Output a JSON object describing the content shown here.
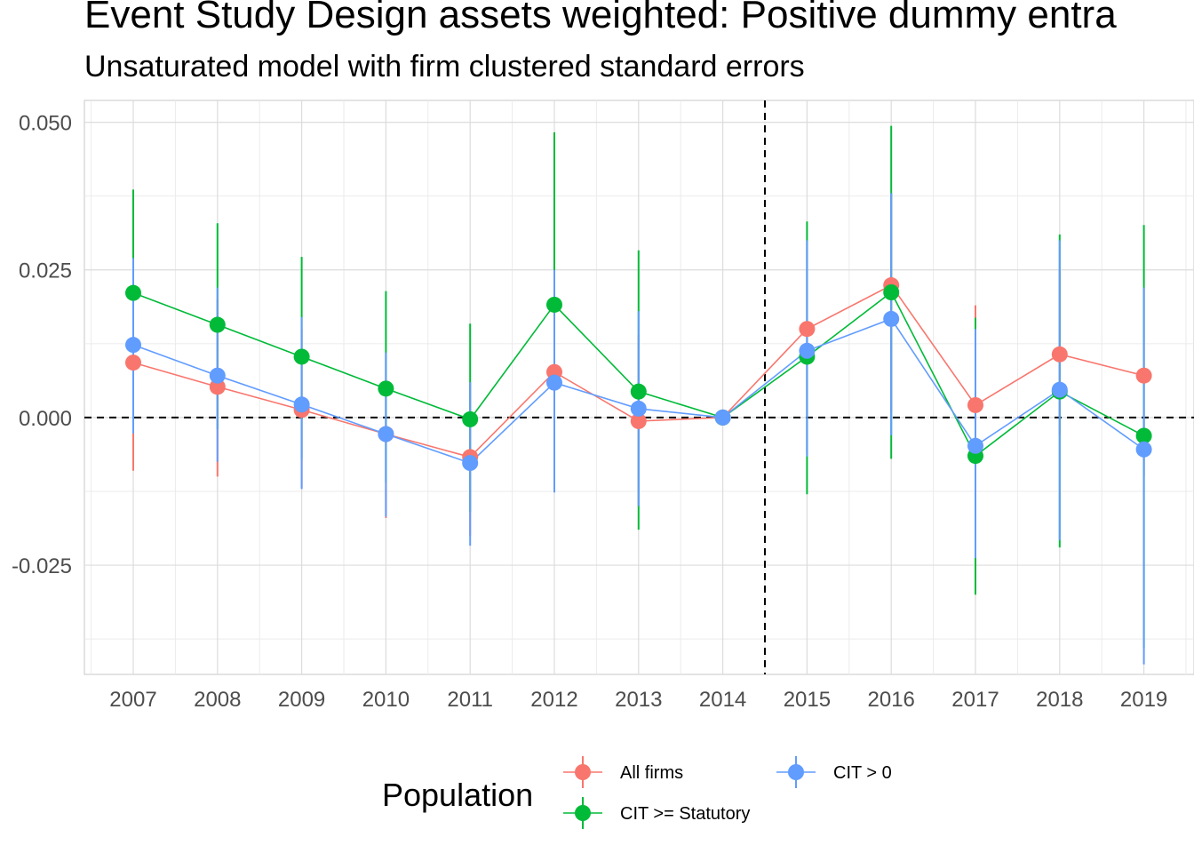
{
  "title": "Event Study Design assets weighted: Positive dummy entra",
  "subtitle": "Unsaturated model with firm clustered standard errors",
  "chart_data": {
    "type": "line",
    "title": "Event Study Design assets weighted: Positive dummy entra",
    "subtitle": "Unsaturated model with firm clustered standard errors",
    "xlabel": "",
    "ylabel": "",
    "x": [
      2007,
      2008,
      2009,
      2010,
      2011,
      2012,
      2013,
      2014,
      2015,
      2016,
      2017,
      2018,
      2019
    ],
    "ylim": [
      -0.0435,
      0.0537
    ],
    "yticks": [
      0.05,
      0.025,
      0.0,
      -0.025
    ],
    "ytick_labels": [
      "0.050",
      "0.025",
      "0.000",
      "-0.025"
    ],
    "grid": true,
    "reference_lines": {
      "y": 0.0,
      "x": 2014.5,
      "style": "dashed"
    },
    "legend": {
      "title": "Population",
      "position": "bottom"
    },
    "series": [
      {
        "name": "All firms",
        "color": "#F8766D",
        "values": [
          0.0093,
          0.0052,
          0.0013,
          -0.0028,
          -0.0067,
          0.0077,
          -0.0006,
          0.0,
          0.015,
          0.0224,
          0.0021,
          0.0107,
          0.0071
        ],
        "ci_lower": [
          -0.009,
          -0.01,
          -0.012,
          -0.017,
          -0.02,
          -0.01,
          -0.015,
          0.0,
          -0.006,
          0.001,
          -0.012,
          -0.003,
          -0.01
        ],
        "ci_upper": [
          0.027,
          0.02,
          0.015,
          0.011,
          0.006,
          0.025,
          0.014,
          0.0,
          0.03,
          0.038,
          0.019,
          0.025,
          0.022
        ]
      },
      {
        "name": "CIT >= Statutory",
        "color": "#00BA38",
        "values": [
          0.0211,
          0.0157,
          0.0103,
          0.0049,
          -0.0003,
          0.0191,
          0.0044,
          0.0,
          0.0103,
          0.0212,
          -0.0065,
          0.0044,
          -0.0031
        ],
        "ci_lower": [
          0.004,
          -0.002,
          -0.007,
          -0.011,
          -0.016,
          -0.01,
          -0.019,
          0.0,
          -0.013,
          -0.007,
          -0.03,
          -0.022,
          -0.039
        ],
        "ci_upper": [
          0.0386,
          0.0329,
          0.0272,
          0.0214,
          0.0159,
          0.0483,
          0.0283,
          0.0,
          0.0332,
          0.0494,
          0.0169,
          0.031,
          0.0326
        ]
      },
      {
        "name": "CIT > 0",
        "color": "#619CFF",
        "values": [
          0.0123,
          0.0071,
          0.0022,
          -0.0028,
          -0.0077,
          0.0059,
          0.0015,
          0.0,
          0.0113,
          0.0167,
          -0.0048,
          0.0047,
          -0.0054
        ],
        "ci_lower": [
          -0.0027,
          -0.0075,
          -0.0121,
          -0.0168,
          -0.0217,
          -0.0127,
          -0.015,
          0.0,
          -0.0066,
          -0.003,
          -0.0238,
          -0.0208,
          -0.0418
        ],
        "ci_upper": [
          0.027,
          0.022,
          0.017,
          0.011,
          0.006,
          0.025,
          0.018,
          0.0,
          0.03,
          0.038,
          0.015,
          0.03,
          0.022
        ]
      }
    ]
  }
}
